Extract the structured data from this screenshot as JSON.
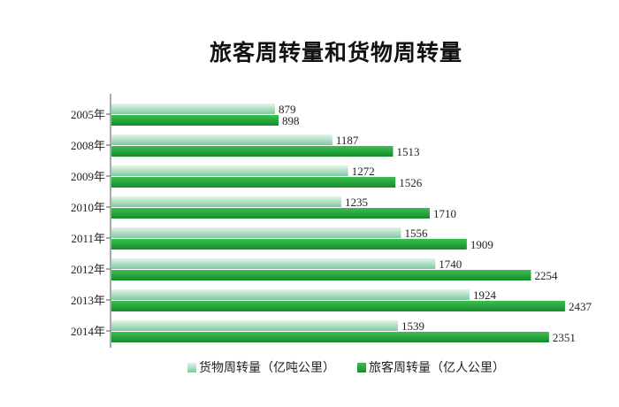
{
  "colors": {
    "freight_dark": "#7ec9a0",
    "freight_light": "#e4f4ea",
    "passenger_dark": "#148c2c",
    "passenger_light": "#3cbf4e",
    "axis": "#555555"
  },
  "chart_data": {
    "type": "bar",
    "orientation": "horizontal",
    "title": "旅客周转量和货物周转量",
    "categories": [
      "2005年",
      "2008年",
      "2009年",
      "2010年",
      "2011年",
      "2012年",
      "2013年",
      "2014年"
    ],
    "series": [
      {
        "name": "货物周转量（亿吨公里）",
        "values": [
          879,
          1187,
          1272,
          1235,
          1556,
          1740,
          1924,
          1539
        ]
      },
      {
        "name": "旅客周转量（亿人公里）",
        "values": [
          898,
          1513,
          1526,
          1710,
          1909,
          2254,
          2437,
          2351
        ]
      }
    ],
    "xlim": [
      0,
      2500
    ],
    "grid": false,
    "legend_position": "bottom"
  }
}
